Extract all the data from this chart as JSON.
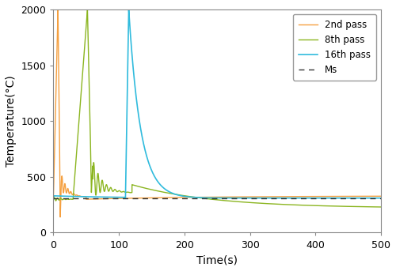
{
  "xlabel": "Time(s)",
  "ylabel": "Temperature(°C)",
  "xlim": [
    0,
    500
  ],
  "ylim": [
    0,
    2000
  ],
  "xticks": [
    0,
    100,
    200,
    300,
    400,
    500
  ],
  "yticks": [
    0,
    500,
    1000,
    1500,
    2000
  ],
  "ms_level": 310,
  "colors": {
    "pass2": "#F5A040",
    "pass8": "#8BB520",
    "pass16": "#30BBDD",
    "ms": "#333333"
  },
  "legend_labels": [
    "2nd pass",
    "8th pass",
    "16th pass",
    "Ms"
  ],
  "background": "#ffffff"
}
